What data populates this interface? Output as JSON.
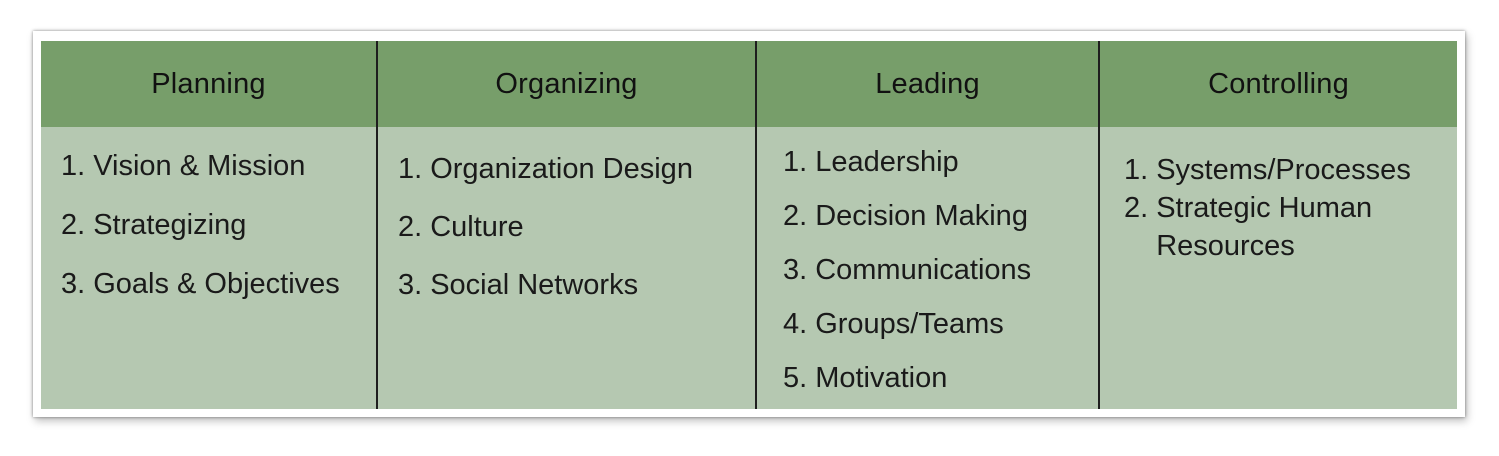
{
  "columns": [
    {
      "title": "Planning",
      "items": [
        {
          "num": "1.",
          "text": "Vision & Mission"
        },
        {
          "num": "2.",
          "text": "Strategizing"
        },
        {
          "num": "3.",
          "text": "Goals & Objectives"
        }
      ]
    },
    {
      "title": "Organizing",
      "items": [
        {
          "num": "1.",
          "text": "Organization Design"
        },
        {
          "num": "2.",
          "text": "Culture"
        },
        {
          "num": "3.",
          "text": "Social Networks"
        }
      ]
    },
    {
      "title": "Leading",
      "items": [
        {
          "num": "1.",
          "text": "Leadership"
        },
        {
          "num": "2.",
          "text": "Decision Making"
        },
        {
          "num": "3.",
          "text": "Communications"
        },
        {
          "num": "4.",
          "text": "Groups/Teams"
        },
        {
          "num": "5.",
          "text": "Motivation"
        }
      ]
    },
    {
      "title": "Controlling",
      "items": [
        {
          "num": "1.",
          "text": "Systems/Processes"
        },
        {
          "num": "2.",
          "text": "Strategic Human Resources"
        }
      ]
    }
  ],
  "colors": {
    "header": "#779e6a",
    "body": "#b5c8b1",
    "divider": "#1e1e1e"
  }
}
